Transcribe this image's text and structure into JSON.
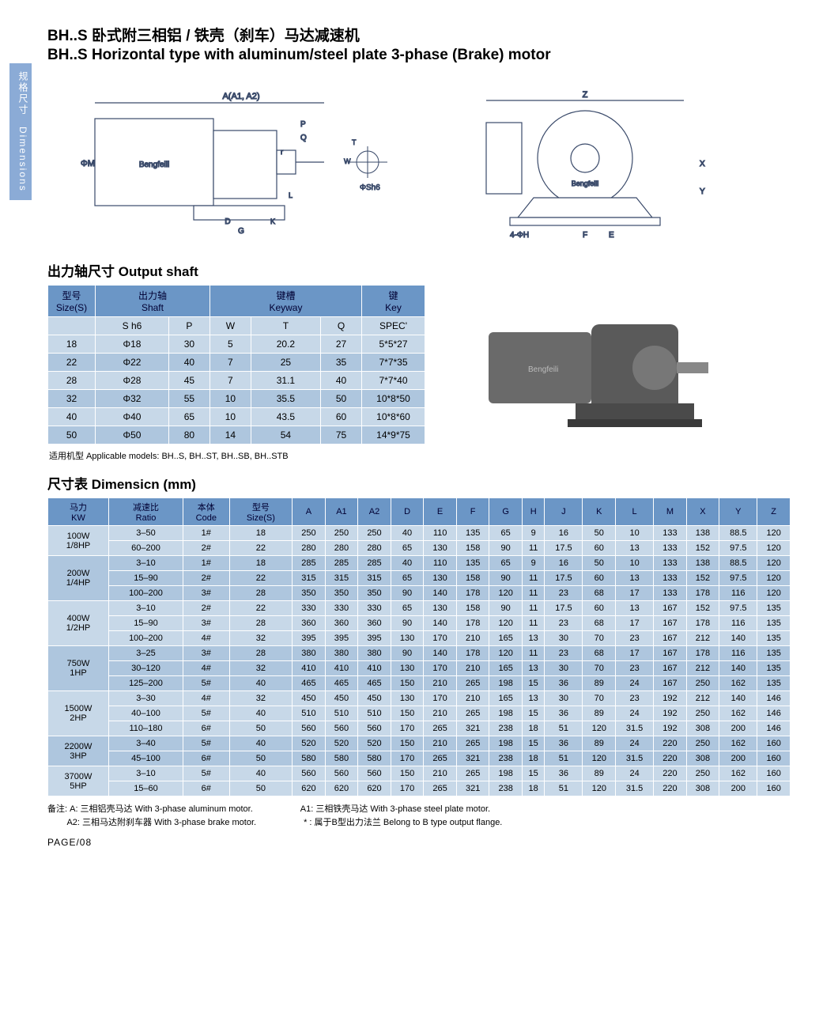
{
  "sideTab": "规格尺寸　Dimensions",
  "title_cn": "BH..S 卧式附三相铝 / 铁壳（刹车）马达减速机",
  "title_en": "BH..S Horizontal type with aluminum/steel plate 3-phase (Brake) motor",
  "diagram_labels": {
    "left": [
      "A(A1, A2)",
      "P",
      "Q",
      "ΦSh6",
      "D",
      "K",
      "G",
      "L",
      "r",
      "ΦM",
      "T",
      "W",
      "Bengfeili"
    ],
    "right": [
      "Z",
      "E",
      "F",
      "X",
      "Y",
      "4-ΦH",
      "Bengfeili"
    ]
  },
  "shaft": {
    "title": "出力轴尺寸 Output shaft",
    "headers": {
      "size": [
        "型号",
        "Size(S)"
      ],
      "shaft": [
        "出力轴",
        "Shaft"
      ],
      "keyway": [
        "键槽",
        "Keyway"
      ],
      "key": [
        "键",
        "Key"
      ]
    },
    "sub": [
      "",
      "S  h6",
      "P",
      "W",
      "T",
      "Q",
      "SPEC'"
    ],
    "rows": [
      [
        "18",
        "Φ18",
        "30",
        "5",
        "20.2",
        "27",
        "5*5*27"
      ],
      [
        "22",
        "Φ22",
        "40",
        "7",
        "25",
        "35",
        "7*7*35"
      ],
      [
        "28",
        "Φ28",
        "45",
        "7",
        "31.1",
        "40",
        "7*7*40"
      ],
      [
        "32",
        "Φ32",
        "55",
        "10",
        "35.5",
        "50",
        "10*8*50"
      ],
      [
        "40",
        "Φ40",
        "65",
        "10",
        "43.5",
        "60",
        "10*8*60"
      ],
      [
        "50",
        "Φ50",
        "80",
        "14",
        "54",
        "75",
        "14*9*75"
      ]
    ],
    "applicable": "适用机型 Applicable models: BH..S, BH..ST, BH..SB, BH..STB"
  },
  "dim": {
    "title": "尺寸表 Dimensicn (mm)",
    "headers": [
      "马力\nKW",
      "减速比\nRatio",
      "本体\nCode",
      "型号\nSize(S)",
      "A",
      "A1",
      "A2",
      "D",
      "E",
      "F",
      "G",
      "H",
      "J",
      "K",
      "L",
      "M",
      "X",
      "Y",
      "Z"
    ],
    "groups": [
      {
        "kw": "100W\n1/8HP",
        "cls": "A",
        "rows": [
          [
            "3–50",
            "1#",
            "18",
            "250",
            "250",
            "250",
            "40",
            "110",
            "135",
            "65",
            "9",
            "16",
            "50",
            "10",
            "133",
            "138",
            "88.5",
            "120"
          ],
          [
            "60–200",
            "2#",
            "22",
            "280",
            "280",
            "280",
            "65",
            "130",
            "158",
            "90",
            "11",
            "17.5",
            "60",
            "13",
            "133",
            "152",
            "97.5",
            "120"
          ]
        ]
      },
      {
        "kw": "200W\n1/4HP",
        "cls": "B",
        "rows": [
          [
            "3–10",
            "1#",
            "18",
            "285",
            "285",
            "285",
            "40",
            "110",
            "135",
            "65",
            "9",
            "16",
            "50",
            "10",
            "133",
            "138",
            "88.5",
            "120"
          ],
          [
            "15–90",
            "2#",
            "22",
            "315",
            "315",
            "315",
            "65",
            "130",
            "158",
            "90",
            "11",
            "17.5",
            "60",
            "13",
            "133",
            "152",
            "97.5",
            "120"
          ],
          [
            "100–200",
            "3#",
            "28",
            "350",
            "350",
            "350",
            "90",
            "140",
            "178",
            "120",
            "11",
            "23",
            "68",
            "17",
            "133",
            "178",
            "116",
            "120"
          ]
        ]
      },
      {
        "kw": "400W\n1/2HP",
        "cls": "A",
        "rows": [
          [
            "3–10",
            "2#",
            "22",
            "330",
            "330",
            "330",
            "65",
            "130",
            "158",
            "90",
            "11",
            "17.5",
            "60",
            "13",
            "167",
            "152",
            "97.5",
            "135"
          ],
          [
            "15–90",
            "3#",
            "28",
            "360",
            "360",
            "360",
            "90",
            "140",
            "178",
            "120",
            "11",
            "23",
            "68",
            "17",
            "167",
            "178",
            "116",
            "135"
          ],
          [
            "100–200",
            "4#",
            "32",
            "395",
            "395",
            "395",
            "130",
            "170",
            "210",
            "165",
            "13",
            "30",
            "70",
            "23",
            "167",
            "212",
            "140",
            "135"
          ]
        ]
      },
      {
        "kw": "750W\n1HP",
        "cls": "B",
        "rows": [
          [
            "3–25",
            "3#",
            "28",
            "380",
            "380",
            "380",
            "90",
            "140",
            "178",
            "120",
            "11",
            "23",
            "68",
            "17",
            "167",
            "178",
            "116",
            "135"
          ],
          [
            "30–120",
            "4#",
            "32",
            "410",
            "410",
            "410",
            "130",
            "170",
            "210",
            "165",
            "13",
            "30",
            "70",
            "23",
            "167",
            "212",
            "140",
            "135"
          ],
          [
            "125–200",
            "5#",
            "40",
            "465",
            "465",
            "465",
            "150",
            "210",
            "265",
            "198",
            "15",
            "36",
            "89",
            "24",
            "167",
            "250",
            "162",
            "135"
          ]
        ]
      },
      {
        "kw": "1500W\n2HP",
        "cls": "A",
        "rows": [
          [
            "3–30",
            "4#",
            "32",
            "450",
            "450",
            "450",
            "130",
            "170",
            "210",
            "165",
            "13",
            "30",
            "70",
            "23",
            "192",
            "212",
            "140",
            "146"
          ],
          [
            "40–100",
            "5#",
            "40",
            "510",
            "510",
            "510",
            "150",
            "210",
            "265",
            "198",
            "15",
            "36",
            "89",
            "24",
            "192",
            "250",
            "162",
            "146"
          ],
          [
            "110–180",
            "6#",
            "50",
            "560",
            "560",
            "560",
            "170",
            "265",
            "321",
            "238",
            "18",
            "51",
            "120",
            "31.5",
            "192",
            "308",
            "200",
            "146"
          ]
        ]
      },
      {
        "kw": "2200W\n3HP",
        "cls": "B",
        "rows": [
          [
            "3–40",
            "5#",
            "40",
            "520",
            "520",
            "520",
            "150",
            "210",
            "265",
            "198",
            "15",
            "36",
            "89",
            "24",
            "220",
            "250",
            "162",
            "160"
          ],
          [
            "45–100",
            "6#",
            "50",
            "580",
            "580",
            "580",
            "170",
            "265",
            "321",
            "238",
            "18",
            "51",
            "120",
            "31.5",
            "220",
            "308",
            "200",
            "160"
          ]
        ]
      },
      {
        "kw": "3700W\n5HP",
        "cls": "A",
        "rows": [
          [
            "3–10",
            "5#",
            "40",
            "560",
            "560",
            "560",
            "150",
            "210",
            "265",
            "198",
            "15",
            "36",
            "89",
            "24",
            "220",
            "250",
            "162",
            "160"
          ],
          [
            "15–60",
            "6#",
            "50",
            "620",
            "620",
            "620",
            "170",
            "265",
            "321",
            "238",
            "18",
            "51",
            "120",
            "31.5",
            "220",
            "308",
            "200",
            "160"
          ]
        ]
      }
    ]
  },
  "footer": {
    "l1a": "备注: A: 三相铝壳马达 With 3-phase aluminum motor.",
    "l1b": "A1: 三相铁壳马达 With 3-phase steel plate motor.",
    "l2a": "　　 A2: 三相马达附刹车器 With 3-phase brake motor.",
    "l2b": "* : 属于B型出力法兰 Belong to B type output flange.",
    "page": "PAGE/08"
  }
}
